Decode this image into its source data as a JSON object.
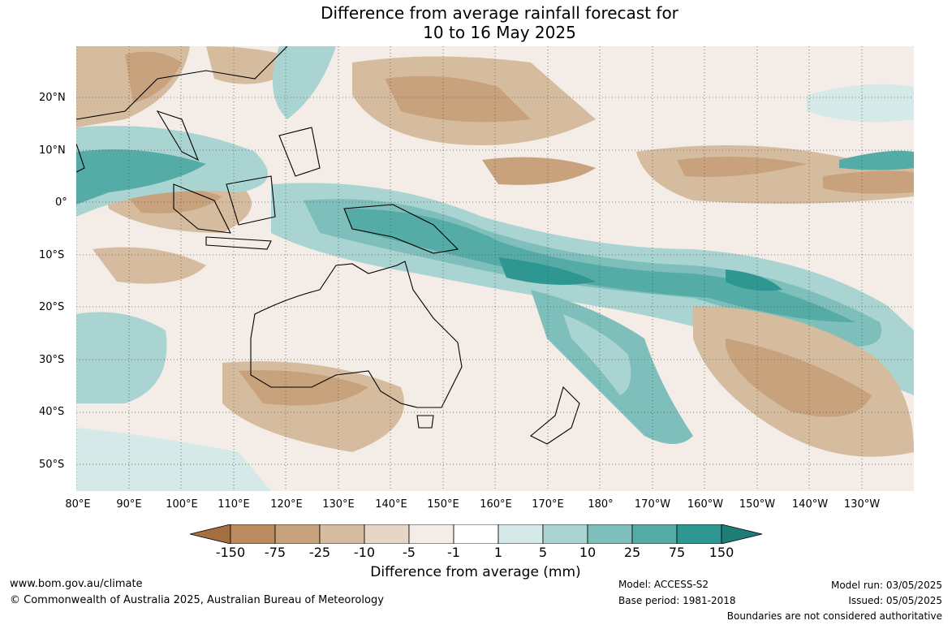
{
  "title": {
    "line1": "Difference from average rainfall forecast for",
    "line2": "10 to 16 May 2025"
  },
  "axes": {
    "lat_labels": [
      "20°N",
      "10°N",
      "0°",
      "10°S",
      "20°S",
      "30°S",
      "40°S",
      "50°S"
    ],
    "lon_labels": [
      "80°E",
      "90°E",
      "100°E",
      "110°E",
      "120°E",
      "130°E",
      "140°E",
      "150°E",
      "160°E",
      "170°E",
      "180°",
      "170°W",
      "160°W",
      "150°W",
      "140°W",
      "130°W"
    ]
  },
  "colorbar": {
    "labels": [
      "-150",
      "-75",
      "-25",
      "-10",
      "-5",
      "-1",
      "1",
      "5",
      "10",
      "25",
      "75",
      "150"
    ],
    "colors": [
      "#a5703f",
      "#b98b5f",
      "#c7a27c",
      "#d6bc9f",
      "#e6d6c5",
      "#f4ece6",
      "#ffffff",
      "#d5e9e8",
      "#aad4d1",
      "#7fbfbb",
      "#55aba6",
      "#2e9791",
      "#1f7d78"
    ],
    "title": "Difference from average (mm)"
  },
  "footer": {
    "website": "www.bom.gov.au/climate",
    "copyright": "© Commonwealth of Australia 2025, Australian Bureau of Meteorology",
    "model": "Model: ACCESS-S2",
    "base_period": "Base period: 1981-2018",
    "model_run": "Model run: 03/05/2025",
    "issued": "Issued: 05/05/2025",
    "disclaimer": "Boundaries are not considered authoritative"
  }
}
